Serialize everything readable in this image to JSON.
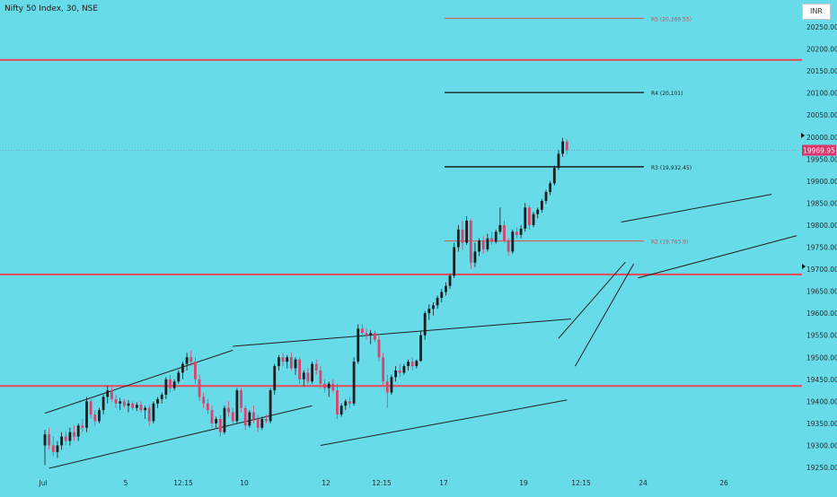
{
  "header": {
    "symbol_title": "Nifty 50 Index, 30, NSE",
    "currency": "INR"
  },
  "chart_data": {
    "type": "candlestick",
    "y_axis": {
      "ticks": [
        19250,
        19300,
        19350,
        19400,
        19450,
        19500,
        19550,
        19600,
        19650,
        19700,
        19750,
        19800,
        19850,
        19900,
        19950,
        20000,
        20050,
        20100,
        20150,
        20200,
        20250
      ],
      "tick_labels": [
        "19250.00",
        "19300.00",
        "19350.00",
        "19400.00",
        "19450.00",
        "19500.00",
        "19550.00",
        "19600.00",
        "19650.00",
        "19700.00",
        "19750.00",
        "19800.00",
        "19850.00",
        "19900.00",
        "19950.00",
        "20000.00",
        "20050.00",
        "20100.00",
        "20150.00",
        "20200.00",
        "20250.00"
      ],
      "range": [
        19235,
        20290
      ]
    },
    "x_axis": {
      "labels": [
        "Jul",
        "5",
        "12:15",
        "10",
        "12",
        "12:15",
        "17",
        "19",
        "12:15",
        "24",
        "26"
      ]
    },
    "last_price": {
      "value": 19969.95,
      "label": "19969.95",
      "color": "#e0336b"
    },
    "pivot_levels": [
      {
        "name": "R5",
        "label": "R5 (20,269.55)",
        "value": 20269.55,
        "color": "#e05050"
      },
      {
        "name": "R4",
        "label": "R4 (20,101)",
        "value": 20101,
        "color": "#111111"
      },
      {
        "name": "R3",
        "label": "R3 (19,932.45)",
        "value": 19932.45,
        "color": "#111111"
      },
      {
        "name": "R2",
        "label": "R2 (19,763.9)",
        "value": 19763.9,
        "color": "#e05050"
      }
    ],
    "horizontal_levels": [
      {
        "value": 20175,
        "color": "#e0505e"
      },
      {
        "value": 19688,
        "color": "#e0505e"
      },
      {
        "value": 19435,
        "color": "#e0505e"
      }
    ],
    "colors": {
      "up": "#1c1c1c",
      "down": "#d9436e",
      "background": "#67dbe8",
      "trend": "#222222"
    },
    "candles": [
      {
        "o": 19300,
        "h": 19335,
        "l": 19255,
        "c": 19325
      },
      {
        "o": 19325,
        "h": 19340,
        "l": 19290,
        "c": 19300
      },
      {
        "o": 19300,
        "h": 19320,
        "l": 19275,
        "c": 19285
      },
      {
        "o": 19285,
        "h": 19310,
        "l": 19272,
        "c": 19300
      },
      {
        "o": 19300,
        "h": 19330,
        "l": 19290,
        "c": 19320
      },
      {
        "o": 19320,
        "h": 19332,
        "l": 19300,
        "c": 19310
      },
      {
        "o": 19310,
        "h": 19340,
        "l": 19300,
        "c": 19330
      },
      {
        "o": 19330,
        "h": 19345,
        "l": 19310,
        "c": 19320
      },
      {
        "o": 19320,
        "h": 19350,
        "l": 19310,
        "c": 19345
      },
      {
        "o": 19345,
        "h": 19360,
        "l": 19330,
        "c": 19340
      },
      {
        "o": 19340,
        "h": 19410,
        "l": 19330,
        "c": 19400
      },
      {
        "o": 19400,
        "h": 19410,
        "l": 19360,
        "c": 19370
      },
      {
        "o": 19370,
        "h": 19380,
        "l": 19345,
        "c": 19355
      },
      {
        "o": 19355,
        "h": 19385,
        "l": 19350,
        "c": 19380
      },
      {
        "o": 19380,
        "h": 19415,
        "l": 19370,
        "c": 19410
      },
      {
        "o": 19410,
        "h": 19435,
        "l": 19395,
        "c": 19425
      },
      {
        "o": 19425,
        "h": 19432,
        "l": 19400,
        "c": 19405
      },
      {
        "o": 19405,
        "h": 19415,
        "l": 19385,
        "c": 19395
      },
      {
        "o": 19395,
        "h": 19408,
        "l": 19380,
        "c": 19400
      },
      {
        "o": 19400,
        "h": 19405,
        "l": 19385,
        "c": 19390
      },
      {
        "o": 19390,
        "h": 19403,
        "l": 19375,
        "c": 19395
      },
      {
        "o": 19395,
        "h": 19400,
        "l": 19380,
        "c": 19385
      },
      {
        "o": 19385,
        "h": 19398,
        "l": 19378,
        "c": 19392
      },
      {
        "o": 19392,
        "h": 19400,
        "l": 19375,
        "c": 19380
      },
      {
        "o": 19380,
        "h": 19390,
        "l": 19360,
        "c": 19385
      },
      {
        "o": 19385,
        "h": 19392,
        "l": 19345,
        "c": 19355
      },
      {
        "o": 19355,
        "h": 19400,
        "l": 19350,
        "c": 19395
      },
      {
        "o": 19395,
        "h": 19410,
        "l": 19385,
        "c": 19405
      },
      {
        "o": 19405,
        "h": 19420,
        "l": 19395,
        "c": 19415
      },
      {
        "o": 19415,
        "h": 19455,
        "l": 19405,
        "c": 19450
      },
      {
        "o": 19450,
        "h": 19460,
        "l": 19420,
        "c": 19430
      },
      {
        "o": 19430,
        "h": 19450,
        "l": 19425,
        "c": 19445
      },
      {
        "o": 19445,
        "h": 19470,
        "l": 19440,
        "c": 19465
      },
      {
        "o": 19465,
        "h": 19490,
        "l": 19450,
        "c": 19485
      },
      {
        "o": 19485,
        "h": 19510,
        "l": 19470,
        "c": 19500
      },
      {
        "o": 19500,
        "h": 19515,
        "l": 19480,
        "c": 19490
      },
      {
        "o": 19490,
        "h": 19500,
        "l": 19440,
        "c": 19450
      },
      {
        "o": 19450,
        "h": 19460,
        "l": 19400,
        "c": 19410
      },
      {
        "o": 19410,
        "h": 19420,
        "l": 19385,
        "c": 19395
      },
      {
        "o": 19395,
        "h": 19405,
        "l": 19370,
        "c": 19380
      },
      {
        "o": 19380,
        "h": 19390,
        "l": 19340,
        "c": 19350
      },
      {
        "o": 19350,
        "h": 19365,
        "l": 19340,
        "c": 19360
      },
      {
        "o": 19360,
        "h": 19368,
        "l": 19320,
        "c": 19330
      },
      {
        "o": 19330,
        "h": 19390,
        "l": 19325,
        "c": 19385
      },
      {
        "o": 19385,
        "h": 19400,
        "l": 19365,
        "c": 19375
      },
      {
        "o": 19375,
        "h": 19385,
        "l": 19345,
        "c": 19355
      },
      {
        "o": 19355,
        "h": 19430,
        "l": 19350,
        "c": 19425
      },
      {
        "o": 19425,
        "h": 19430,
        "l": 19375,
        "c": 19385
      },
      {
        "o": 19385,
        "h": 19390,
        "l": 19335,
        "c": 19345
      },
      {
        "o": 19345,
        "h": 19380,
        "l": 19340,
        "c": 19375
      },
      {
        "o": 19375,
        "h": 19390,
        "l": 19350,
        "c": 19360
      },
      {
        "o": 19360,
        "h": 19370,
        "l": 19330,
        "c": 19340
      },
      {
        "o": 19340,
        "h": 19365,
        "l": 19335,
        "c": 19360
      },
      {
        "o": 19360,
        "h": 19370,
        "l": 19350,
        "c": 19355
      },
      {
        "o": 19355,
        "h": 19430,
        "l": 19350,
        "c": 19425
      },
      {
        "o": 19425,
        "h": 19485,
        "l": 19415,
        "c": 19480
      },
      {
        "o": 19480,
        "h": 19505,
        "l": 19470,
        "c": 19500
      },
      {
        "o": 19500,
        "h": 19510,
        "l": 19480,
        "c": 19490
      },
      {
        "o": 19490,
        "h": 19505,
        "l": 19475,
        "c": 19500
      },
      {
        "o": 19500,
        "h": 19510,
        "l": 19470,
        "c": 19475
      },
      {
        "o": 19475,
        "h": 19500,
        "l": 19460,
        "c": 19495
      },
      {
        "o": 19495,
        "h": 19500,
        "l": 19440,
        "c": 19450
      },
      {
        "o": 19450,
        "h": 19470,
        "l": 19435,
        "c": 19465
      },
      {
        "o": 19465,
        "h": 19475,
        "l": 19440,
        "c": 19445
      },
      {
        "o": 19445,
        "h": 19490,
        "l": 19440,
        "c": 19485
      },
      {
        "o": 19485,
        "h": 19495,
        "l": 19460,
        "c": 19470
      },
      {
        "o": 19470,
        "h": 19480,
        "l": 19430,
        "c": 19440
      },
      {
        "o": 19440,
        "h": 19450,
        "l": 19420,
        "c": 19430
      },
      {
        "o": 19430,
        "h": 19445,
        "l": 19410,
        "c": 19440
      },
      {
        "o": 19440,
        "h": 19450,
        "l": 19420,
        "c": 19425
      },
      {
        "o": 19425,
        "h": 19440,
        "l": 19360,
        "c": 19370
      },
      {
        "o": 19370,
        "h": 19395,
        "l": 19365,
        "c": 19390
      },
      {
        "o": 19390,
        "h": 19405,
        "l": 19380,
        "c": 19400
      },
      {
        "o": 19400,
        "h": 19410,
        "l": 19385,
        "c": 19395
      },
      {
        "o": 19395,
        "h": 19500,
        "l": 19390,
        "c": 19490
      },
      {
        "o": 19490,
        "h": 19575,
        "l": 19485,
        "c": 19565
      },
      {
        "o": 19565,
        "h": 19575,
        "l": 19545,
        "c": 19555
      },
      {
        "o": 19555,
        "h": 19565,
        "l": 19540,
        "c": 19550
      },
      {
        "o": 19550,
        "h": 19562,
        "l": 19530,
        "c": 19555
      },
      {
        "o": 19555,
        "h": 19560,
        "l": 19535,
        "c": 19540
      },
      {
        "o": 19540,
        "h": 19548,
        "l": 19490,
        "c": 19500
      },
      {
        "o": 19500,
        "h": 19510,
        "l": 19435,
        "c": 19445
      },
      {
        "o": 19445,
        "h": 19460,
        "l": 19385,
        "c": 19420
      },
      {
        "o": 19420,
        "h": 19460,
        "l": 19415,
        "c": 19455
      },
      {
        "o": 19455,
        "h": 19480,
        "l": 19445,
        "c": 19470
      },
      {
        "o": 19470,
        "h": 19485,
        "l": 19455,
        "c": 19465
      },
      {
        "o": 19465,
        "h": 19485,
        "l": 19460,
        "c": 19480
      },
      {
        "o": 19480,
        "h": 19495,
        "l": 19470,
        "c": 19490
      },
      {
        "o": 19490,
        "h": 19500,
        "l": 19470,
        "c": 19480
      },
      {
        "o": 19480,
        "h": 19495,
        "l": 19475,
        "c": 19492
      },
      {
        "o": 19492,
        "h": 19560,
        "l": 19490,
        "c": 19550
      },
      {
        "o": 19550,
        "h": 19605,
        "l": 19540,
        "c": 19600
      },
      {
        "o": 19600,
        "h": 19620,
        "l": 19585,
        "c": 19610
      },
      {
        "o": 19610,
        "h": 19625,
        "l": 19595,
        "c": 19618
      },
      {
        "o": 19618,
        "h": 19640,
        "l": 19610,
        "c": 19635
      },
      {
        "o": 19635,
        "h": 19655,
        "l": 19625,
        "c": 19648
      },
      {
        "o": 19648,
        "h": 19670,
        "l": 19640,
        "c": 19662
      },
      {
        "o": 19662,
        "h": 19690,
        "l": 19655,
        "c": 19685
      },
      {
        "o": 19685,
        "h": 19760,
        "l": 19680,
        "c": 19750
      },
      {
        "o": 19750,
        "h": 19800,
        "l": 19740,
        "c": 19790
      },
      {
        "o": 19790,
        "h": 19810,
        "l": 19745,
        "c": 19760
      },
      {
        "o": 19760,
        "h": 19820,
        "l": 19755,
        "c": 19810
      },
      {
        "o": 19810,
        "h": 19815,
        "l": 19700,
        "c": 19715
      },
      {
        "o": 19715,
        "h": 19760,
        "l": 19705,
        "c": 19740
      },
      {
        "o": 19740,
        "h": 19770,
        "l": 19730,
        "c": 19765
      },
      {
        "o": 19765,
        "h": 19775,
        "l": 19735,
        "c": 19745
      },
      {
        "o": 19745,
        "h": 19780,
        "l": 19740,
        "c": 19770
      },
      {
        "o": 19770,
        "h": 19785,
        "l": 19755,
        "c": 19762
      },
      {
        "o": 19762,
        "h": 19790,
        "l": 19758,
        "c": 19785
      },
      {
        "o": 19785,
        "h": 19840,
        "l": 19780,
        "c": 19800
      },
      {
        "o": 19800,
        "h": 19810,
        "l": 19760,
        "c": 19765
      },
      {
        "o": 19765,
        "h": 19770,
        "l": 19730,
        "c": 19740
      },
      {
        "o": 19740,
        "h": 19790,
        "l": 19735,
        "c": 19785
      },
      {
        "o": 19785,
        "h": 19795,
        "l": 19770,
        "c": 19778
      },
      {
        "o": 19778,
        "h": 19800,
        "l": 19770,
        "c": 19792
      },
      {
        "o": 19792,
        "h": 19850,
        "l": 19785,
        "c": 19840
      },
      {
        "o": 19840,
        "h": 19845,
        "l": 19790,
        "c": 19800
      },
      {
        "o": 19800,
        "h": 19830,
        "l": 19795,
        "c": 19825
      },
      {
        "o": 19825,
        "h": 19840,
        "l": 19815,
        "c": 19835
      },
      {
        "o": 19835,
        "h": 19860,
        "l": 19828,
        "c": 19855
      },
      {
        "o": 19855,
        "h": 19880,
        "l": 19848,
        "c": 19875
      },
      {
        "o": 19875,
        "h": 19900,
        "l": 19868,
        "c": 19895
      },
      {
        "o": 19895,
        "h": 19935,
        "l": 19890,
        "c": 19930
      },
      {
        "o": 19930,
        "h": 19970,
        "l": 19925,
        "c": 19962
      },
      {
        "o": 19962,
        "h": 19998,
        "l": 19955,
        "c": 19990
      },
      {
        "o": 19990,
        "h": 19995,
        "l": 19960,
        "c": 19970
      }
    ],
    "trendlines": [
      {
        "x1": "2023-07-03 09:15",
        "y1": 19373,
        "x2": "2023-07-06 12:15",
        "y2": 19516
      },
      {
        "x1": "2023-07-03 09:45",
        "y1": 19248,
        "x2": "2023-07-07 15:15",
        "y2": 19390
      },
      {
        "x1": "2023-07-06 12:15",
        "y1": 19525,
        "x2": "2023-07-14 13:45",
        "y2": 19587
      },
      {
        "x1": "2023-07-10 09:45",
        "y1": 19300,
        "x2": "2023-07-14 13:15",
        "y2": 19403
      },
      {
        "x1": "2023-07-14 12:15",
        "y1": 19543,
        "x2": "2023-07-17 13:45",
        "y2": 19716
      },
      {
        "x1": "2023-07-14 14:15",
        "y1": 19480,
        "x2": "2023-07-17 14:45",
        "y2": 19712
      },
      {
        "x1": "2023-07-17 13:15",
        "y1": 19807,
        "x2": "2023-07-20 11:45",
        "y2": 19870
      },
      {
        "x1": "2023-07-17 15:15",
        "y1": 19680,
        "x2": "2023-07-20 14:45",
        "y2": 19776
      }
    ]
  }
}
